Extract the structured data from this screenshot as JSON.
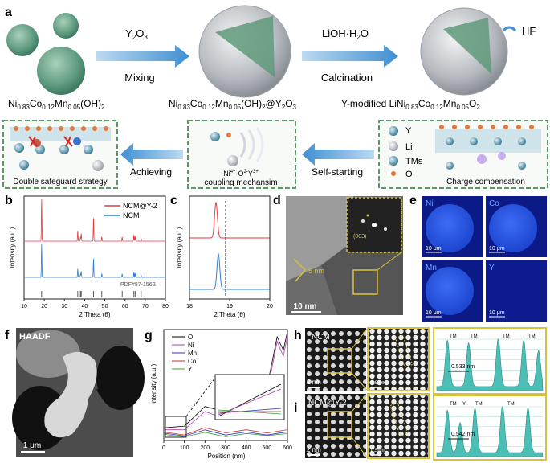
{
  "panel_a": {
    "label": "a",
    "precursor": {
      "pre": "Ni",
      "s1": "0.83",
      "m1": "Co",
      "s2": "0.12",
      "m2": "Mn",
      "s3": "0.05",
      "post": "(OH)",
      "s4": "2"
    },
    "coated": {
      "pre": "Ni",
      "s1": "0.83",
      "m1": "Co",
      "s2": "0.12",
      "m2": "Mn",
      "s3": "0.05",
      "m3": "(OH)",
      "s4": "2",
      "post": "@Y",
      "s5": "2",
      "post2": "O",
      "s6": "3"
    },
    "product": {
      "lead": "Y-modified   LiNi",
      "s1": "0.83",
      "m1": "Co",
      "s2": "0.12",
      "m2": "Mn",
      "s3": "0.05",
      "post": "O",
      "s4": "2"
    },
    "arrow1_top": {
      "pre": "Y",
      "s1": "2",
      "post": "O",
      "s2": "3"
    },
    "arrow1_bottom": "Mixing",
    "arrow2_top": {
      "pre": "LiOH·H",
      "s1": "2",
      "post": "O"
    },
    "arrow2_bottom": "Calcination",
    "hf_label": "HF",
    "box_left_caption": "Double safeguard strategy",
    "box_mid_caption_1": {
      "pre": "Ni",
      "sup1": "4+",
      "mid": "-O",
      "sup2": "2-",
      "mid2": "Y",
      "sup3": "3+"
    },
    "box_mid_caption_2": "coupling mechansim",
    "box_right_caption": "Charge compensation",
    "arrow_achieving": "Achieving",
    "arrow_self_starting": "Self-starting",
    "legend": [
      "Y",
      "Li",
      "TMs",
      "O"
    ]
  },
  "panel_b": {
    "label": "b",
    "ylabel": "Intensity (a.u.)",
    "xlabel": "2 Theta (θ)",
    "legend": [
      "NCM@Y-2",
      "NCM"
    ],
    "ref_label": "PDF#87-1562",
    "xticks": [
      "10",
      "20",
      "30",
      "40",
      "50",
      "60",
      "70",
      "80"
    ]
  },
  "panel_c": {
    "label": "c",
    "ylabel": "Intensity (a.u.)",
    "xlabel": "2 Theta (θ)",
    "xticks": [
      "18",
      "19",
      "20"
    ]
  },
  "panel_d": {
    "label": "d",
    "fft_label": "(003)",
    "lattice_label": "5 nm",
    "scale": "10 nm"
  },
  "panel_e": {
    "label": "e",
    "maps": [
      {
        "el": "Ni",
        "scale": "10 μm"
      },
      {
        "el": "Co",
        "scale": "10 μm"
      },
      {
        "el": "Mn",
        "scale": "10 μm"
      },
      {
        "el": "Y",
        "scale": "10 μm"
      }
    ]
  },
  "panel_f": {
    "label": "f",
    "title": "HAADF",
    "scale": "1 μm"
  },
  "panel_g": {
    "label": "g",
    "ylabel": "Intensity (a.u.)",
    "xlabel": "Position (nm)",
    "xticks": [
      "0",
      "100",
      "200",
      "300",
      "400",
      "500",
      "600"
    ],
    "legend": [
      {
        "name": "O",
        "color": "#000000"
      },
      {
        "name": "Ni",
        "color": "#b03ab0"
      },
      {
        "name": "Mn",
        "color": "#3030c0"
      },
      {
        "name": "Co",
        "color": "#c03030"
      },
      {
        "name": "Y",
        "color": "#30a030"
      }
    ]
  },
  "panel_h": {
    "label": "h",
    "tag": "NCM",
    "scale": "2 nm",
    "zoom_scale": "0.5 nm",
    "spacing": "0.533 nm",
    "peaks": [
      "TM",
      "TM",
      "TM",
      "TM"
    ]
  },
  "panel_i": {
    "label": "i",
    "tag": "NCM@Y-2",
    "scale": "2 nm",
    "zoom_scale": "0.5nm",
    "spacing": "0.542 nm",
    "peaks": [
      "TM",
      "Y",
      "TM",
      "TM"
    ]
  },
  "colors": {
    "ncm_y": "#e8393b",
    "ncm": "#2c7fd6",
    "arrow": "#4e9cd8",
    "box": "#5a9a68",
    "map_bg": "#0b1a86",
    "map_particle": "#2456e6",
    "teal": "#4bbfb6"
  },
  "chart_data": [
    {
      "type": "line",
      "title": "",
      "xlabel": "2 Theta (θ)",
      "ylabel": "Intensity (a.u.)",
      "xlim": [
        10,
        80
      ],
      "series": [
        {
          "name": "NCM@Y-2",
          "peaks_x": [
            18.7,
            36.6,
            37.9,
            38.3,
            44.4,
            48.5,
            58.6,
            64.4,
            65.0,
            68.0
          ],
          "peaks_rel": [
            1.0,
            0.25,
            0.08,
            0.18,
            0.55,
            0.1,
            0.1,
            0.15,
            0.12,
            0.06
          ]
        },
        {
          "name": "NCM",
          "peaks_x": [
            18.7,
            36.6,
            37.9,
            38.3,
            44.4,
            48.5,
            58.6,
            64.4,
            65.0,
            68.0
          ],
          "peaks_rel": [
            1.0,
            0.25,
            0.08,
            0.18,
            0.55,
            0.1,
            0.1,
            0.15,
            0.12,
            0.06
          ]
        }
      ],
      "reference": {
        "name": "PDF#87-1562",
        "x": [
          18.7,
          36.6,
          37.9,
          38.3,
          44.4,
          48.5,
          58.6,
          64.4,
          65.0,
          68.0
        ]
      }
    },
    {
      "type": "line",
      "title": "",
      "xlabel": "2 Theta (θ)",
      "ylabel": "Intensity (a.u.)",
      "xlim": [
        18,
        20
      ],
      "series": [
        {
          "name": "NCM@Y-2",
          "peak_x": 18.66
        },
        {
          "name": "NCM",
          "peak_x": 18.72
        }
      ]
    },
    {
      "type": "line",
      "title": "",
      "xlabel": "Position (nm)",
      "ylabel": "Intensity (a.u.)",
      "xlim": [
        0,
        600
      ],
      "series": [
        {
          "name": "O",
          "x": [
            0,
            100,
            200,
            300,
            400,
            500,
            550,
            580,
            600
          ],
          "y": [
            0.1,
            0.15,
            0.3,
            0.28,
            0.2,
            0.5,
            0.95,
            0.85,
            1.0
          ]
        },
        {
          "name": "Ni",
          "x": [
            0,
            100,
            200,
            300,
            400,
            500,
            550,
            580,
            600
          ],
          "y": [
            0.08,
            0.12,
            0.25,
            0.22,
            0.18,
            0.45,
            0.9,
            0.8,
            0.95
          ]
        },
        {
          "name": "Mn",
          "x": [
            0,
            100,
            200,
            300,
            400,
            500,
            600
          ],
          "y": [
            0.05,
            0.06,
            0.08,
            0.07,
            0.06,
            0.07,
            0.06
          ]
        },
        {
          "name": "Co",
          "x": [
            0,
            100,
            200,
            300,
            400,
            500,
            600
          ],
          "y": [
            0.06,
            0.07,
            0.1,
            0.09,
            0.08,
            0.09,
            0.08
          ]
        },
        {
          "name": "Y",
          "x": [
            0,
            100,
            200,
            300,
            400,
            500,
            600
          ],
          "y": [
            0.04,
            0.05,
            0.06,
            0.05,
            0.05,
            0.06,
            0.05
          ]
        }
      ]
    },
    {
      "type": "bar",
      "name": "h-profile",
      "spacing_nm": 0.533,
      "labels": [
        "TM",
        "TM",
        "TM",
        "TM"
      ]
    },
    {
      "type": "bar",
      "name": "i-profile",
      "spacing_nm": 0.542,
      "labels": [
        "TM",
        "Y",
        "TM",
        "TM"
      ]
    }
  ]
}
